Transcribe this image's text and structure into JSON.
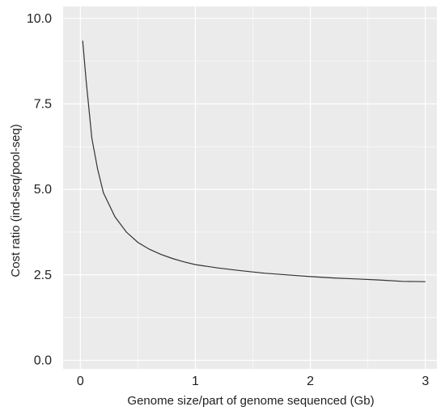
{
  "chart_data": {
    "type": "line",
    "title": "",
    "xlabel": "Genome size/part of genome sequenced (Gb)",
    "ylabel": "Cost ratio (ind-seq/pool-seq)",
    "xlim": [
      -0.15,
      3.1
    ],
    "ylim": [
      -0.25,
      10.35
    ],
    "x_ticks": [
      0,
      1,
      2,
      3
    ],
    "x_tick_labels": [
      "0",
      "1",
      "2",
      "3"
    ],
    "y_ticks": [
      0,
      2.5,
      5,
      7.5,
      10
    ],
    "y_tick_labels": [
      "0.0",
      "2.5",
      "5.0",
      "7.5",
      "10.0"
    ],
    "grid": true,
    "legend": "none",
    "colors": {
      "panel": "#ebebeb",
      "grid": "#ffffff",
      "line": "#333333"
    },
    "series": [
      {
        "x": [
          0.02,
          0.05,
          0.1,
          0.15,
          0.2,
          0.3,
          0.4,
          0.5,
          0.6,
          0.7,
          0.8,
          0.9,
          1.0,
          1.2,
          1.4,
          1.6,
          1.8,
          2.0,
          2.2,
          2.4,
          2.6,
          2.8,
          3.0
        ],
        "y": [
          9.35,
          8.2,
          6.5,
          5.6,
          4.9,
          4.2,
          3.75,
          3.45,
          3.25,
          3.1,
          2.98,
          2.88,
          2.8,
          2.7,
          2.62,
          2.55,
          2.5,
          2.45,
          2.41,
          2.38,
          2.35,
          2.31,
          2.3
        ]
      }
    ]
  }
}
